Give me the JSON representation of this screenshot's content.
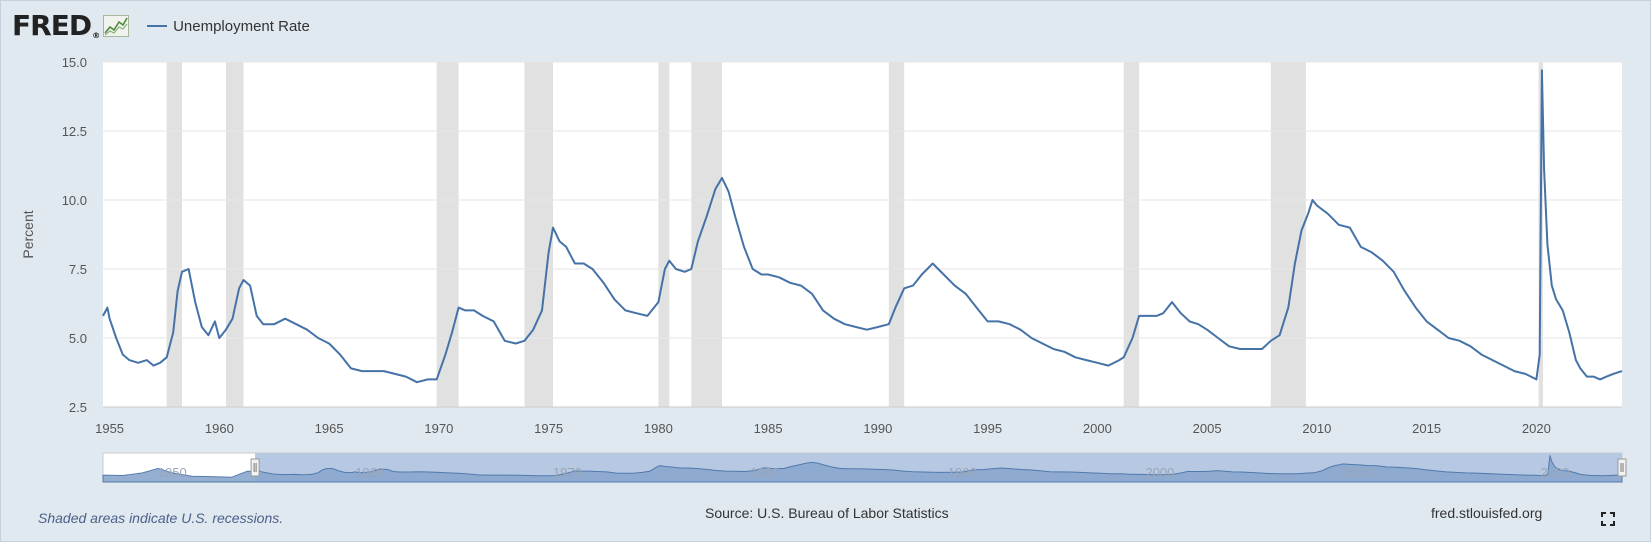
{
  "header": {
    "logo": "FRED",
    "logo_reg": "®",
    "legend_label": "Unemployment Rate",
    "logo_icon": "line-chart-icon"
  },
  "footer": {
    "recession_note": "Shaded areas indicate U.S. recessions.",
    "source": "Source: U.S. Bureau of Labor Statistics",
    "url": "fred.stlouisfed.org",
    "fullscreen_icon": "fullscreen-icon"
  },
  "colors": {
    "line": "#4572a7",
    "recession": "#e1e1e1",
    "navigator_fill": "#8aa7cf",
    "navigator_mask": "#b7c8e3"
  },
  "chart_data": {
    "type": "line",
    "title": "",
    "xlabel": "",
    "ylabel": "Percent",
    "xlim": [
      1954.7,
      2023.9
    ],
    "ylim": [
      2.5,
      15.0
    ],
    "yticks": [
      "2.5",
      "5.0",
      "7.5",
      "10.0",
      "12.5",
      "15.0"
    ],
    "xticks": [
      "1955",
      "1960",
      "1965",
      "1970",
      "1975",
      "1980",
      "1985",
      "1990",
      "1995",
      "2000",
      "2005",
      "2010",
      "2015",
      "2020"
    ],
    "grid": true,
    "legend": "top-left",
    "recessions": [
      [
        1957.6,
        1958.3
      ],
      [
        1960.3,
        1961.1
      ],
      [
        1969.9,
        1970.9
      ],
      [
        1973.9,
        1975.2
      ],
      [
        1980.0,
        1980.5
      ],
      [
        1981.5,
        1982.9
      ],
      [
        1990.5,
        1991.2
      ],
      [
        2001.2,
        2001.9
      ],
      [
        2007.9,
        2009.5
      ],
      [
        2020.1,
        2020.3
      ]
    ],
    "series": [
      {
        "name": "Unemployment Rate",
        "x": [
          1954.7,
          1954.9,
          1955.0,
          1955.3,
          1955.6,
          1955.9,
          1956.3,
          1956.7,
          1957.0,
          1957.3,
          1957.6,
          1957.9,
          1958.1,
          1958.3,
          1958.6,
          1958.9,
          1959.2,
          1959.5,
          1959.8,
          1960.0,
          1960.3,
          1960.6,
          1960.9,
          1961.1,
          1961.4,
          1961.7,
          1962.0,
          1962.5,
          1963.0,
          1963.5,
          1964.0,
          1964.5,
          1965.0,
          1965.5,
          1966.0,
          1966.5,
          1967.0,
          1967.5,
          1968.0,
          1968.5,
          1969.0,
          1969.5,
          1969.9,
          1970.3,
          1970.6,
          1970.9,
          1971.2,
          1971.6,
          1972.0,
          1972.5,
          1973.0,
          1973.5,
          1973.9,
          1974.3,
          1974.7,
          1975.0,
          1975.2,
          1975.5,
          1975.8,
          1976.2,
          1976.6,
          1977.0,
          1977.5,
          1978.0,
          1978.5,
          1979.0,
          1979.5,
          1980.0,
          1980.3,
          1980.5,
          1980.8,
          1981.2,
          1981.5,
          1981.8,
          1982.2,
          1982.6,
          1982.9,
          1983.2,
          1983.5,
          1983.9,
          1984.3,
          1984.7,
          1985.0,
          1985.5,
          1986.0,
          1986.5,
          1987.0,
          1987.5,
          1988.0,
          1988.5,
          1989.0,
          1989.5,
          1990.0,
          1990.5,
          1990.8,
          1991.2,
          1991.6,
          1992.0,
          1992.5,
          1993.0,
          1993.5,
          1994.0,
          1994.5,
          1995.0,
          1995.5,
          1996.0,
          1996.5,
          1997.0,
          1997.5,
          1998.0,
          1998.5,
          1999.0,
          1999.5,
          2000.0,
          2000.5,
          2001.0,
          2001.2,
          2001.6,
          2001.9,
          2002.3,
          2002.7,
          2003.0,
          2003.4,
          2003.8,
          2004.2,
          2004.6,
          2005.0,
          2005.5,
          2006.0,
          2006.5,
          2007.0,
          2007.5,
          2007.9,
          2008.3,
          2008.7,
          2009.0,
          2009.3,
          2009.6,
          2009.8,
          2010.0,
          2010.5,
          2011.0,
          2011.5,
          2012.0,
          2012.5,
          2013.0,
          2013.5,
          2014.0,
          2014.5,
          2015.0,
          2015.5,
          2016.0,
          2016.5,
          2017.0,
          2017.5,
          2018.0,
          2018.5,
          2019.0,
          2019.5,
          2020.0,
          2020.15,
          2020.25,
          2020.35,
          2020.5,
          2020.7,
          2020.9,
          2021.2,
          2021.5,
          2021.8,
          2022.0,
          2022.3,
          2022.6,
          2022.9,
          2023.2,
          2023.5,
          2023.9
        ],
        "values": [
          5.8,
          6.1,
          5.7,
          5.0,
          4.4,
          4.2,
          4.1,
          4.2,
          4.0,
          4.1,
          4.3,
          5.2,
          6.7,
          7.4,
          7.5,
          6.3,
          5.4,
          5.1,
          5.6,
          5.0,
          5.3,
          5.7,
          6.8,
          7.1,
          6.9,
          5.8,
          5.5,
          5.5,
          5.7,
          5.5,
          5.3,
          5.0,
          4.8,
          4.4,
          3.9,
          3.8,
          3.8,
          3.8,
          3.7,
          3.6,
          3.4,
          3.5,
          3.5,
          4.4,
          5.2,
          6.1,
          6.0,
          6.0,
          5.8,
          5.6,
          4.9,
          4.8,
          4.9,
          5.3,
          6.0,
          8.1,
          9.0,
          8.5,
          8.3,
          7.7,
          7.7,
          7.5,
          7.0,
          6.4,
          6.0,
          5.9,
          5.8,
          6.3,
          7.5,
          7.8,
          7.5,
          7.4,
          7.5,
          8.5,
          9.4,
          10.4,
          10.8,
          10.3,
          9.4,
          8.3,
          7.5,
          7.3,
          7.3,
          7.2,
          7.0,
          6.9,
          6.6,
          6.0,
          5.7,
          5.5,
          5.4,
          5.3,
          5.4,
          5.5,
          6.1,
          6.8,
          6.9,
          7.3,
          7.7,
          7.3,
          6.9,
          6.6,
          6.1,
          5.6,
          5.6,
          5.5,
          5.3,
          5.0,
          4.8,
          4.6,
          4.5,
          4.3,
          4.2,
          4.1,
          4.0,
          4.2,
          4.3,
          5.0,
          5.8,
          5.8,
          5.8,
          5.9,
          6.3,
          5.9,
          5.6,
          5.5,
          5.3,
          5.0,
          4.7,
          4.6,
          4.6,
          4.6,
          4.9,
          5.1,
          6.1,
          7.7,
          8.9,
          9.5,
          10.0,
          9.8,
          9.5,
          9.1,
          9.0,
          8.3,
          8.1,
          7.8,
          7.4,
          6.7,
          6.1,
          5.6,
          5.3,
          5.0,
          4.9,
          4.7,
          4.4,
          4.2,
          4.0,
          3.8,
          3.7,
          3.5,
          4.4,
          14.7,
          11.1,
          8.4,
          6.9,
          6.4,
          6.0,
          5.2,
          4.2,
          3.9,
          3.6,
          3.6,
          3.5,
          3.6,
          3.7,
          3.8
        ]
      }
    ],
    "navigator": {
      "xticks": [
        "1950",
        "1960",
        "1970",
        "1980",
        "1990",
        "2000",
        "2010",
        "2020"
      ],
      "selected_range": [
        1954.7,
        2023.9
      ]
    }
  }
}
